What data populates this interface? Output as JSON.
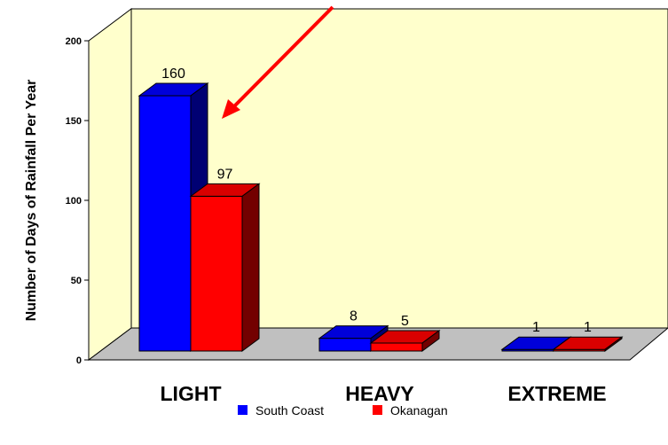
{
  "chart_data": {
    "type": "bar",
    "title": "",
    "xlabel": "",
    "ylabel": "Number of Days of Rainfall Per Year",
    "categories": [
      "LIGHT",
      "HEAVY",
      "EXTREME"
    ],
    "series": [
      {
        "name": "South Coast",
        "values": [
          160,
          8,
          1
        ],
        "color": "#0000ff"
      },
      {
        "name": "Okanagan",
        "values": [
          97,
          5,
          1
        ],
        "color": "#ff0000"
      }
    ],
    "ylim": [
      0,
      200
    ],
    "yticks": [
      0,
      50,
      100,
      150,
      200
    ],
    "three_d": true,
    "grid": false,
    "legend_position": "bottom-center",
    "annotation": "red arrow pointing at the LIGHT South Coast bar",
    "colors": {
      "wall": "#ffffcc",
      "floor": "#c0c0c0",
      "arrow": "#ff0000"
    }
  }
}
